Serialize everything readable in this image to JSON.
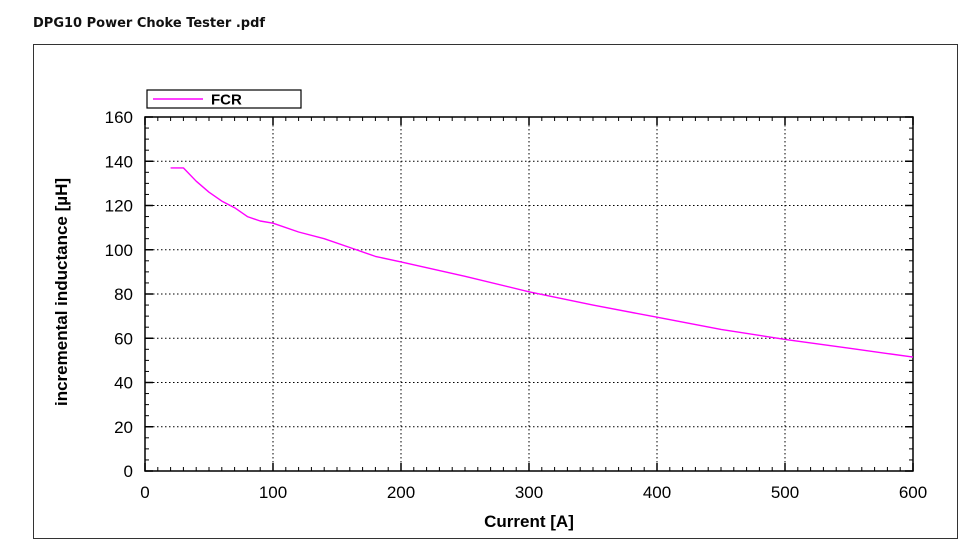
{
  "document": {
    "title": "DPG10 Power Choke Tester .pdf"
  },
  "chart_data": {
    "type": "line",
    "title": "",
    "xlabel": "Current [A]",
    "ylabel": "incremental inductance [µH]",
    "xlim": [
      0,
      600
    ],
    "ylim": [
      0,
      160
    ],
    "xticks": [
      0,
      100,
      200,
      300,
      400,
      500,
      600
    ],
    "yticks": [
      0,
      20,
      40,
      60,
      80,
      100,
      120,
      140,
      160
    ],
    "grid": true,
    "legend_position": "top-left",
    "series": [
      {
        "name": "FCR",
        "color": "#ff00ff",
        "x": [
          20,
          30,
          40,
          50,
          60,
          70,
          80,
          90,
          100,
          120,
          140,
          160,
          180,
          200,
          250,
          300,
          350,
          400,
          450,
          500,
          550,
          600
        ],
        "y": [
          137,
          137,
          131,
          126,
          122,
          119,
          115,
          113,
          112,
          108,
          105,
          101,
          97,
          94.5,
          88,
          81,
          75,
          69.5,
          64,
          59.5,
          55.5,
          51.5
        ]
      }
    ]
  }
}
